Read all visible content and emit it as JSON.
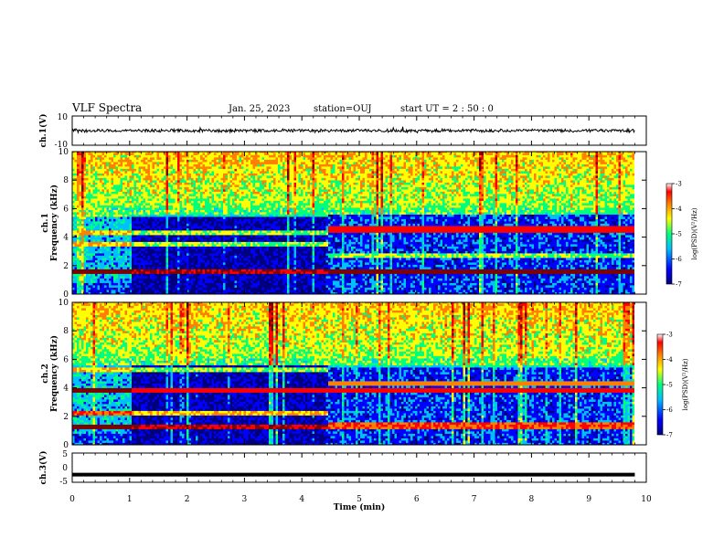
{
  "header": {
    "title": "VLF Spectra",
    "date": "Jan. 25, 2023",
    "station": "station=OUJ",
    "start": "start  UT =  2 : 50 : 0"
  },
  "colors": {
    "colormap": [
      "#00007f",
      "#0000ff",
      "#00bfff",
      "#00ff7f",
      "#ffff00",
      "#ff7f00",
      "#ff0000",
      "#7f0000"
    ],
    "trace": "#000000"
  },
  "chart_data": [
    {
      "type": "line",
      "panel": "ch1-waveform",
      "ylabel": "ch.1(V)",
      "yticks": [
        "10",
        "-10"
      ],
      "ylim": [
        -10,
        10
      ],
      "x": [
        0,
        1,
        2,
        3,
        4,
        5,
        6,
        7,
        8,
        9,
        9.8
      ],
      "values": [
        0.2,
        0.1,
        0.0,
        0.1,
        -0.1,
        0.0,
        0.1,
        0.0,
        -0.1,
        0.0,
        0.1
      ]
    },
    {
      "type": "heatmap",
      "panel": "ch1-spectrogram",
      "ylabel_line1": "ch.1",
      "ylabel_line2": "Frequency (kHz)",
      "yticks": [
        "0",
        "2",
        "4",
        "6",
        "8",
        "10"
      ],
      "ylim": [
        0,
        10
      ],
      "xlim": [
        0,
        10
      ],
      "data_end_min": 9.8,
      "colorbar": {
        "ticks": [
          "-3",
          "-4",
          "-5",
          "-6",
          "-7"
        ],
        "label": "log(PSD)(V²/Hz)",
        "range": [
          -7,
          -3
        ]
      },
      "events": [
        {
          "t": 4.45,
          "desc": "band structure change"
        }
      ],
      "bands_before": [
        {
          "f": 1.5,
          "level": -3.5
        },
        {
          "f": 3.5,
          "level": -5.0
        },
        {
          "f": 4.2,
          "level": -5.0
        },
        {
          "f": 5.5,
          "level": -5.5
        }
      ],
      "bands_after": [
        {
          "f": 1.5,
          "level": -3.3
        },
        {
          "f": 2.7,
          "level": -5.0
        },
        {
          "f": 4.5,
          "level": -3.8
        },
        {
          "f": 5.7,
          "level": -5.5
        }
      ]
    },
    {
      "type": "heatmap",
      "panel": "ch2-spectrogram",
      "ylabel_line1": "ch.2",
      "ylabel_line2": "Frequency (kHz)",
      "yticks": [
        "0",
        "2",
        "4",
        "6",
        "8",
        "10"
      ],
      "ylim": [
        0,
        10
      ],
      "xlim": [
        0,
        10
      ],
      "data_end_min": 9.8,
      "colorbar": {
        "ticks": [
          "-3",
          "-4",
          "-5",
          "-6",
          "-7"
        ],
        "label": "log(PSD)(V²/Hz)",
        "range": [
          -7,
          -3
        ]
      },
      "events": [
        {
          "t": 4.45,
          "desc": "band structure change"
        }
      ],
      "bands_before": [
        {
          "f": 1.2,
          "level": -3.5
        },
        {
          "f": 2.2,
          "level": -4.5
        },
        {
          "f": 3.8,
          "level": -3.8
        },
        {
          "f": 5.2,
          "level": -5.0
        }
      ],
      "bands_after": [
        {
          "f": 1.3,
          "level": -4.0
        },
        {
          "f": 3.8,
          "level": -3.8
        },
        {
          "f": 4.2,
          "level": -4.2
        },
        {
          "f": 5.6,
          "level": -5.5
        }
      ]
    },
    {
      "type": "line",
      "panel": "ch3-waveform",
      "ylabel": "ch.3(V)",
      "yticks": [
        "5",
        "0",
        "-5"
      ],
      "ylim": [
        -5,
        5
      ],
      "x": [
        0,
        9.8
      ],
      "values": [
        -2.4,
        -2.4
      ]
    }
  ],
  "xaxis": {
    "label": "Time (min)",
    "ticks": [
      "0",
      "1",
      "2",
      "3",
      "4",
      "5",
      "6",
      "7",
      "8",
      "9",
      "10"
    ],
    "range": [
      0,
      10
    ]
  }
}
